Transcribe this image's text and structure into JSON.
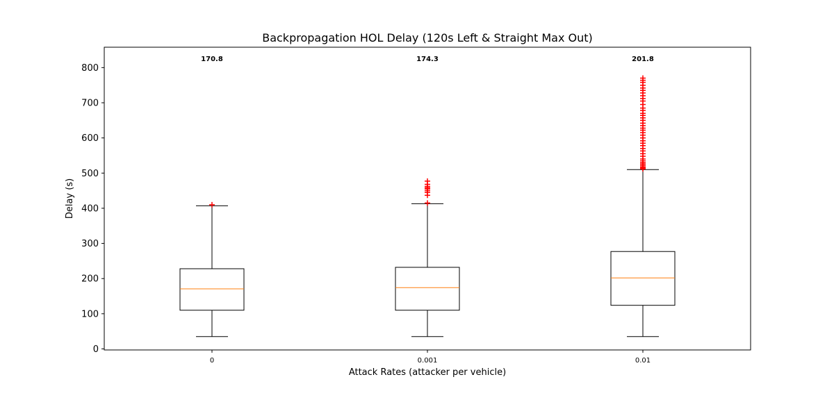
{
  "chart_data": {
    "type": "box",
    "title": "Backpropagation HOL Delay (120s Left & Straight Max Out)",
    "xlabel": "Attack Rates (attacker per vehicle)",
    "ylabel": "Delay (s)",
    "ylim": [
      -3,
      858
    ],
    "yticks": [
      0,
      100,
      200,
      300,
      400,
      500,
      600,
      700,
      800
    ],
    "ytick_labels": [
      "0",
      "100",
      "200",
      "300",
      "400",
      "500",
      "600",
      "700",
      "800"
    ],
    "categories": [
      "0",
      "0.001",
      "0.01"
    ],
    "grid": false,
    "colors": {
      "box": "#000000",
      "median": "#ff7f0e",
      "outlier": "#ff0000"
    },
    "boxes": [
      {
        "category": "0",
        "whisker_low": 35,
        "q1": 110,
        "median": 170.8,
        "q3": 228,
        "whisker_high": 407,
        "median_label": "170.8",
        "outliers": [
          410
        ]
      },
      {
        "category": "0.001",
        "whisker_low": 35,
        "q1": 110,
        "median": 174.3,
        "q3": 232,
        "whisker_high": 413,
        "median_label": "174.3",
        "outliers": [
          415,
          437,
          445,
          450,
          455,
          458,
          462,
          468,
          477
        ]
      },
      {
        "category": "0.01",
        "whisker_low": 35,
        "q1": 124,
        "median": 201.8,
        "q3": 277,
        "whisker_high": 510,
        "median_label": "201.8",
        "outliers": [
          512,
          515,
          518,
          522,
          526,
          530,
          535,
          540,
          548,
          555,
          563,
          570,
          578,
          585,
          592,
          600,
          608,
          615,
          622,
          628,
          635,
          642,
          650,
          657,
          664,
          670,
          678,
          685,
          695,
          705,
          712,
          720,
          728,
          735,
          742,
          750,
          758,
          764,
          770
        ]
      }
    ]
  }
}
